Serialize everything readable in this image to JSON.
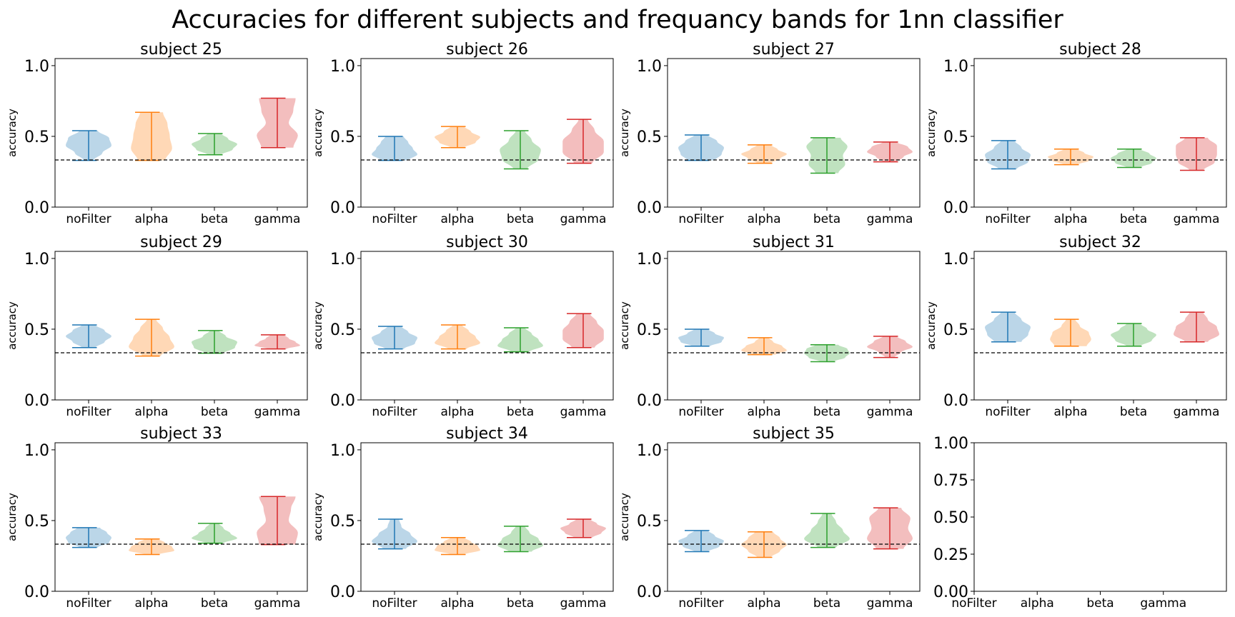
{
  "figure": {
    "title": "Accuracies for different subjects and frequancy bands for 1nn classifier"
  },
  "chart_data": {
    "type": "violin",
    "categories": [
      "noFilter",
      "alpha",
      "beta",
      "gamma"
    ],
    "colors": [
      "#1f77b4",
      "#ff7f0e",
      "#2ca02c",
      "#d62728"
    ],
    "ylabel": "accuracy",
    "ylim": [
      0,
      1.05
    ],
    "yticks": [
      "0.0",
      "0.5",
      "1.0"
    ],
    "chance_level": 0.333,
    "panels": [
      {
        "title": "subject 25",
        "series": [
          {
            "name": "noFilter",
            "min": 0.33,
            "max": 0.54,
            "widths": [
              0.2,
              0.6,
              1.0,
              0.9,
              0.4
            ]
          },
          {
            "name": "alpha",
            "min": 0.33,
            "max": 0.67,
            "widths": [
              0.6,
              0.9,
              0.8,
              0.7,
              0.5
            ]
          },
          {
            "name": "beta",
            "min": 0.37,
            "max": 0.52,
            "widths": [
              0.3,
              0.8,
              1.0,
              0.6,
              0.3
            ]
          },
          {
            "name": "gamma",
            "min": 0.42,
            "max": 0.77,
            "widths": [
              0.7,
              0.9,
              0.5,
              0.7,
              0.8
            ]
          }
        ]
      },
      {
        "title": "subject 26",
        "series": [
          {
            "name": "noFilter",
            "min": 0.33,
            "max": 0.5,
            "widths": [
              0.6,
              1.0,
              0.8,
              0.6,
              0.4
            ]
          },
          {
            "name": "alpha",
            "min": 0.42,
            "max": 0.57,
            "widths": [
              0.3,
              0.8,
              1.0,
              0.6,
              0.3
            ]
          },
          {
            "name": "beta",
            "min": 0.27,
            "max": 0.54,
            "widths": [
              0.3,
              0.8,
              0.9,
              0.5,
              0.2
            ]
          },
          {
            "name": "gamma",
            "min": 0.31,
            "max": 0.62,
            "widths": [
              0.4,
              0.9,
              0.9,
              0.5,
              0.2
            ]
          }
        ]
      },
      {
        "title": "subject 27",
        "series": [
          {
            "name": "noFilter",
            "min": 0.33,
            "max": 0.51,
            "widths": [
              0.6,
              0.9,
              1.0,
              0.7,
              0.3
            ]
          },
          {
            "name": "alpha",
            "min": 0.31,
            "max": 0.44,
            "widths": [
              0.3,
              0.7,
              1.0,
              0.6,
              0.3
            ]
          },
          {
            "name": "beta",
            "min": 0.24,
            "max": 0.49,
            "widths": [
              0.5,
              0.8,
              0.7,
              0.9,
              0.6
            ]
          },
          {
            "name": "gamma",
            "min": 0.32,
            "max": 0.46,
            "widths": [
              0.3,
              0.6,
              1.0,
              0.8,
              0.3
            ]
          }
        ]
      },
      {
        "title": "subject 28",
        "series": [
          {
            "name": "noFilter",
            "min": 0.27,
            "max": 0.47,
            "widths": [
              0.4,
              0.9,
              1.0,
              0.6,
              0.3
            ]
          },
          {
            "name": "alpha",
            "min": 0.3,
            "max": 0.41,
            "widths": [
              0.3,
              0.8,
              1.0,
              0.6,
              0.3
            ]
          },
          {
            "name": "beta",
            "min": 0.28,
            "max": 0.41,
            "widths": [
              0.3,
              0.8,
              1.0,
              0.7,
              0.3
            ]
          },
          {
            "name": "gamma",
            "min": 0.26,
            "max": 0.49,
            "widths": [
              0.3,
              0.8,
              0.9,
              0.9,
              0.5
            ]
          }
        ]
      },
      {
        "title": "subject 29",
        "series": [
          {
            "name": "noFilter",
            "min": 0.37,
            "max": 0.53,
            "widths": [
              0.3,
              0.7,
              1.0,
              0.7,
              0.3
            ]
          },
          {
            "name": "alpha",
            "min": 0.31,
            "max": 0.57,
            "widths": [
              0.4,
              1.0,
              0.8,
              0.5,
              0.2
            ]
          },
          {
            "name": "beta",
            "min": 0.33,
            "max": 0.49,
            "widths": [
              0.4,
              0.9,
              1.0,
              0.5,
              0.2
            ]
          },
          {
            "name": "gamma",
            "min": 0.36,
            "max": 0.46,
            "widths": [
              0.4,
              1.0,
              0.8,
              0.5,
              0.3
            ]
          }
        ]
      },
      {
        "title": "subject 30",
        "series": [
          {
            "name": "noFilter",
            "min": 0.36,
            "max": 0.52,
            "widths": [
              0.4,
              0.9,
              1.0,
              0.6,
              0.3
            ]
          },
          {
            "name": "alpha",
            "min": 0.36,
            "max": 0.53,
            "widths": [
              0.4,
              1.0,
              0.8,
              0.5,
              0.2
            ]
          },
          {
            "name": "beta",
            "min": 0.34,
            "max": 0.51,
            "widths": [
              0.4,
              1.0,
              0.8,
              0.5,
              0.2
            ]
          },
          {
            "name": "gamma",
            "min": 0.37,
            "max": 0.61,
            "widths": [
              0.5,
              0.9,
              0.9,
              0.6,
              0.3
            ]
          }
        ]
      },
      {
        "title": "subject 31",
        "series": [
          {
            "name": "noFilter",
            "min": 0.38,
            "max": 0.5,
            "widths": [
              0.4,
              0.9,
              1.0,
              0.6,
              0.3
            ]
          },
          {
            "name": "alpha",
            "min": 0.32,
            "max": 0.44,
            "widths": [
              0.5,
              1.0,
              0.8,
              0.4,
              0.2
            ]
          },
          {
            "name": "beta",
            "min": 0.27,
            "max": 0.39,
            "widths": [
              0.3,
              0.8,
              1.0,
              0.9,
              0.5
            ]
          },
          {
            "name": "gamma",
            "min": 0.3,
            "max": 0.45,
            "widths": [
              0.2,
              0.5,
              1.0,
              0.7,
              0.3
            ]
          }
        ]
      },
      {
        "title": "subject 32",
        "series": [
          {
            "name": "noFilter",
            "min": 0.41,
            "max": 0.62,
            "widths": [
              0.6,
              0.9,
              1.0,
              0.6,
              0.3
            ]
          },
          {
            "name": "alpha",
            "min": 0.38,
            "max": 0.57,
            "widths": [
              0.7,
              0.9,
              0.8,
              0.4,
              0.2
            ]
          },
          {
            "name": "beta",
            "min": 0.38,
            "max": 0.54,
            "widths": [
              0.3,
              0.8,
              1.0,
              0.6,
              0.3
            ]
          },
          {
            "name": "gamma",
            "min": 0.41,
            "max": 0.62,
            "widths": [
              0.5,
              1.0,
              0.9,
              0.5,
              0.3
            ]
          }
        ]
      },
      {
        "title": "subject 33",
        "series": [
          {
            "name": "noFilter",
            "min": 0.31,
            "max": 0.45,
            "widths": [
              0.4,
              0.9,
              1.0,
              0.8,
              0.5
            ]
          },
          {
            "name": "alpha",
            "min": 0.26,
            "max": 0.37,
            "widths": [
              0.3,
              1.0,
              0.9,
              0.6,
              0.3
            ]
          },
          {
            "name": "beta",
            "min": 0.34,
            "max": 0.48,
            "widths": [
              0.4,
              1.0,
              0.7,
              0.4,
              0.2
            ]
          },
          {
            "name": "gamma",
            "min": 0.33,
            "max": 0.67,
            "widths": [
              0.8,
              0.9,
              0.5,
              0.6,
              0.8
            ]
          }
        ]
      },
      {
        "title": "subject 34",
        "series": [
          {
            "name": "noFilter",
            "min": 0.3,
            "max": 0.51,
            "widths": [
              0.5,
              1.0,
              0.7,
              0.3,
              0.2
            ]
          },
          {
            "name": "alpha",
            "min": 0.26,
            "max": 0.38,
            "widths": [
              0.3,
              1.0,
              0.9,
              0.6,
              0.3
            ]
          },
          {
            "name": "beta",
            "min": 0.28,
            "max": 0.46,
            "widths": [
              0.5,
              1.0,
              0.8,
              0.4,
              0.2
            ]
          },
          {
            "name": "gamma",
            "min": 0.38,
            "max": 0.51,
            "widths": [
              0.4,
              0.8,
              1.0,
              0.6,
              0.3
            ]
          }
        ]
      },
      {
        "title": "subject 35",
        "series": [
          {
            "name": "noFilter",
            "min": 0.28,
            "max": 0.43,
            "widths": [
              0.3,
              0.8,
              1.0,
              0.6,
              0.3
            ]
          },
          {
            "name": "alpha",
            "min": 0.24,
            "max": 0.42,
            "widths": [
              0.3,
              0.7,
              1.0,
              0.7,
              0.4
            ]
          },
          {
            "name": "beta",
            "min": 0.31,
            "max": 0.55,
            "widths": [
              0.4,
              1.0,
              0.7,
              0.4,
              0.2
            ]
          },
          {
            "name": "gamma",
            "min": 0.3,
            "max": 0.59,
            "widths": [
              0.6,
              1.0,
              0.8,
              0.9,
              0.5
            ]
          }
        ]
      }
    ],
    "empty_panel": {
      "yticks": [
        "0.00",
        "0.25",
        "0.50",
        "0.75",
        "1.00"
      ],
      "xticks": [
        "noFilter",
        "alpha",
        "beta",
        "gamma"
      ]
    }
  }
}
